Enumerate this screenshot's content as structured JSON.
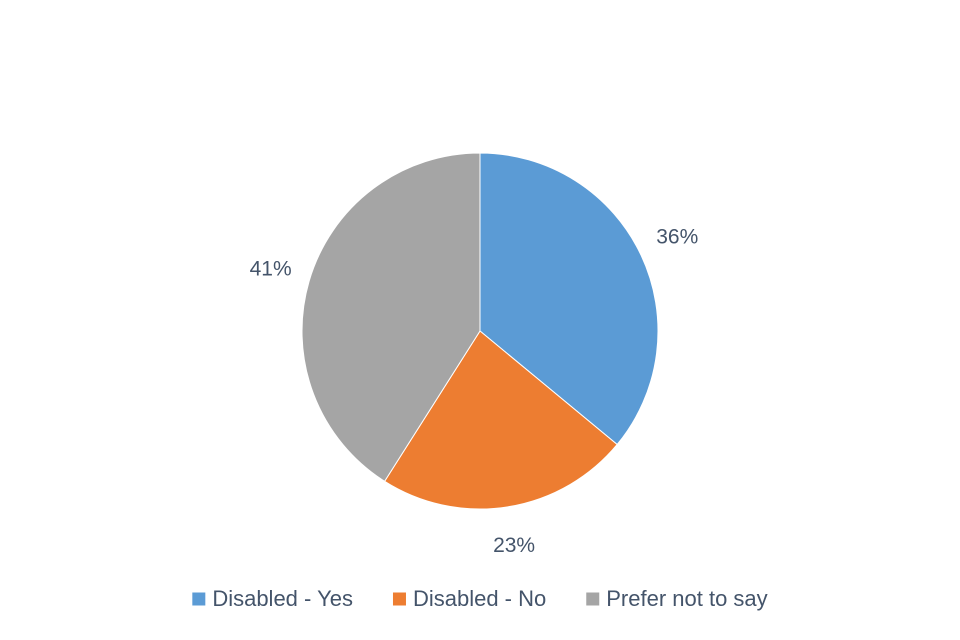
{
  "chart_data": {
    "type": "pie",
    "categories": [
      "Disabled - Yes",
      "Disabled - No",
      "Prefer not to say"
    ],
    "values": [
      36,
      23,
      41
    ],
    "value_labels": [
      "36%",
      "23%",
      "41%"
    ],
    "colors": [
      "#5b9bd5",
      "#ed7d31",
      "#a5a5a5"
    ],
    "legend": "bottom"
  }
}
